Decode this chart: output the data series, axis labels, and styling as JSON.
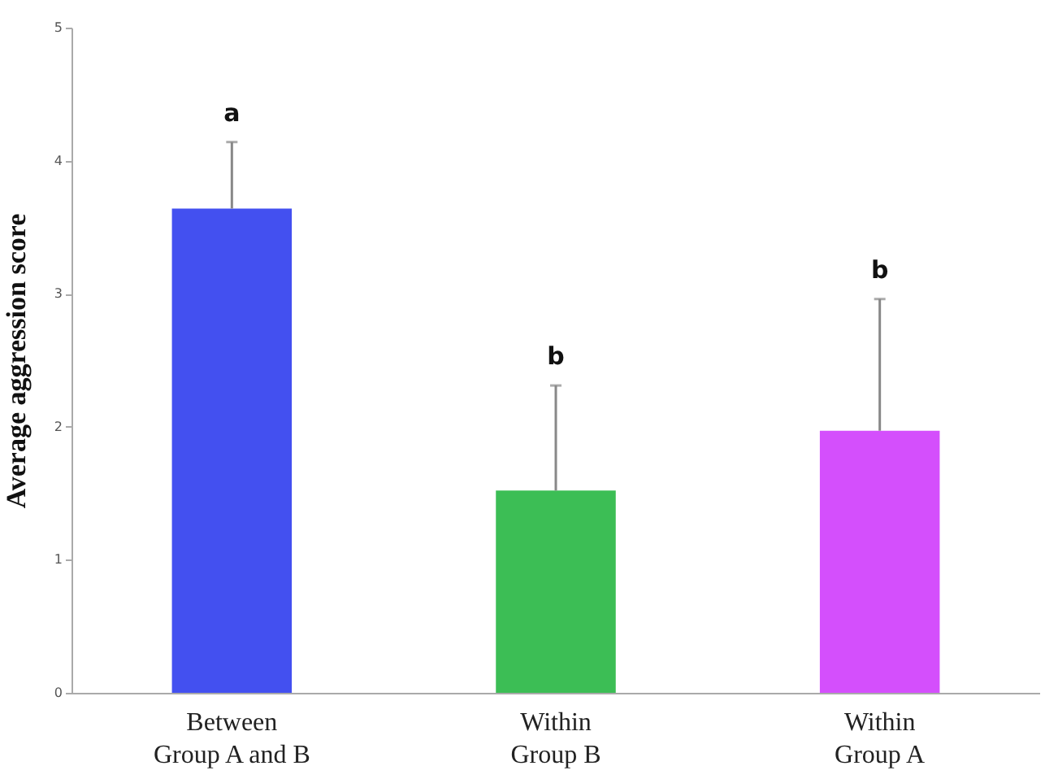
{
  "chart_data": {
    "type": "bar",
    "ylabel": "Average aggression score",
    "categories": [
      "Between Group A and B",
      "Within Group B",
      "Within Group A"
    ],
    "values": [
      3.64,
      1.52,
      1.97
    ],
    "colors": [
      "#4350f0",
      "#3cbe55",
      "#d44ffc"
    ],
    "errors": [
      [
        3.64,
        4.14
      ],
      [
        1.52,
        2.31
      ],
      [
        1.97,
        2.96
      ]
    ],
    "ylim": [
      0,
      5
    ],
    "yticks": [
      0,
      1,
      2,
      3,
      4,
      5
    ],
    "grid": false,
    "legend": false,
    "annotations": [
      "a",
      "b",
      "b"
    ]
  }
}
